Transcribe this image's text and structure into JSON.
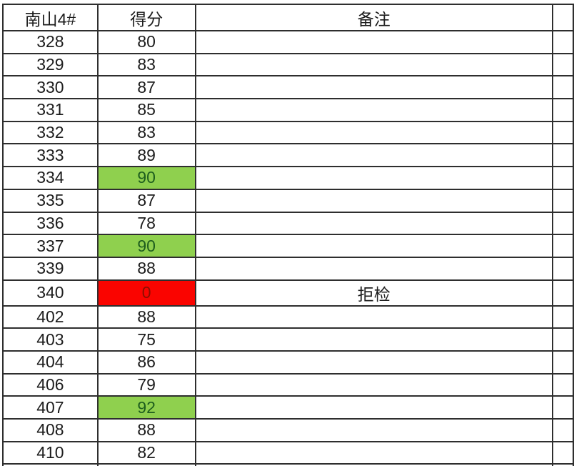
{
  "table": {
    "header": {
      "unit": "南山4#",
      "score": "得分",
      "remark": "备注"
    },
    "rows": [
      {
        "id": "328",
        "score": "80",
        "remark": "",
        "highlight": "none"
      },
      {
        "id": "329",
        "score": "83",
        "remark": "",
        "highlight": "none"
      },
      {
        "id": "330",
        "score": "87",
        "remark": "",
        "highlight": "none"
      },
      {
        "id": "331",
        "score": "85",
        "remark": "",
        "highlight": "none"
      },
      {
        "id": "332",
        "score": "83",
        "remark": "",
        "highlight": "none"
      },
      {
        "id": "333",
        "score": "89",
        "remark": "",
        "highlight": "none"
      },
      {
        "id": "334",
        "score": "90",
        "remark": "",
        "highlight": "green"
      },
      {
        "id": "335",
        "score": "87",
        "remark": "",
        "highlight": "none"
      },
      {
        "id": "336",
        "score": "78",
        "remark": "",
        "highlight": "none"
      },
      {
        "id": "337",
        "score": "90",
        "remark": "",
        "highlight": "green"
      },
      {
        "id": "339",
        "score": "88",
        "remark": "",
        "highlight": "none"
      },
      {
        "id": "340",
        "score": "0",
        "remark": "拒检",
        "highlight": "red"
      },
      {
        "id": "402",
        "score": "88",
        "remark": "",
        "highlight": "none"
      },
      {
        "id": "403",
        "score": "75",
        "remark": "",
        "highlight": "none"
      },
      {
        "id": "404",
        "score": "86",
        "remark": "",
        "highlight": "none"
      },
      {
        "id": "406",
        "score": "79",
        "remark": "",
        "highlight": "none"
      },
      {
        "id": "407",
        "score": "92",
        "remark": "",
        "highlight": "green"
      },
      {
        "id": "408",
        "score": "88",
        "remark": "",
        "highlight": "none"
      },
      {
        "id": "410",
        "score": "82",
        "remark": "",
        "highlight": "none"
      }
    ]
  },
  "colors": {
    "highlight_green_bg": "#8fd04e",
    "highlight_green_text": "#1e5e1e",
    "highlight_red_bg": "#fa0400",
    "highlight_red_text": "#8a0e00",
    "grid_border": "#2e2e2e",
    "text": "#1c1c1c"
  }
}
